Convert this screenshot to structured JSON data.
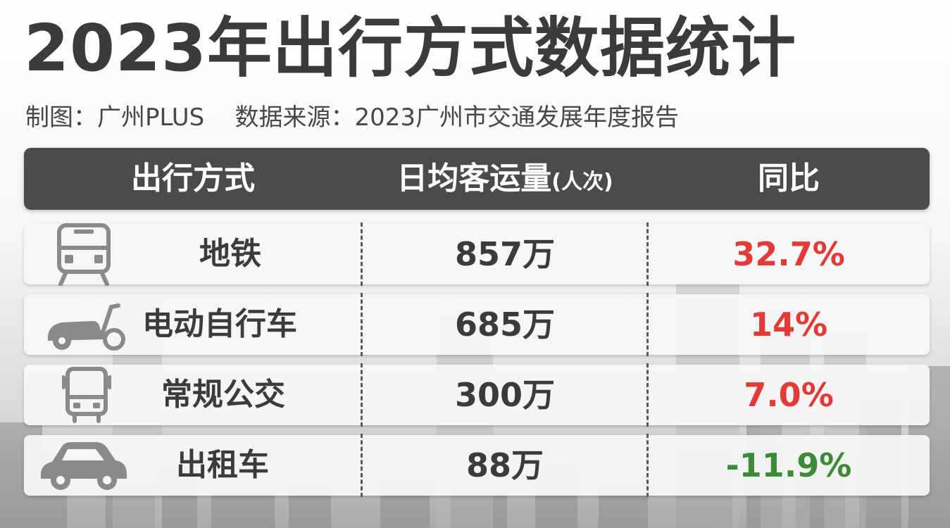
{
  "title": "2023年出行方式数据统计",
  "subtitle": {
    "maker": "制图：广州PLUS",
    "source": "数据来源：2023广州市交通发展年度报告"
  },
  "colors": {
    "header_bg": "#4b4b4b",
    "positive": "#e23a36",
    "negative": "#3d8b3a",
    "text": "#3b3b3b",
    "icon": "#8a8a8a"
  },
  "chart_data": {
    "type": "table",
    "columns": {
      "mode": "出行方式",
      "volume": "日均客运量",
      "volume_unit": "(人次)",
      "yoy": "同比"
    },
    "rows": [
      {
        "icon": "subway-train-icon",
        "mode": "地铁",
        "volume": "857万",
        "volume_value": 857,
        "yoy": "32.7%",
        "yoy_value": 32.7
      },
      {
        "icon": "electric-scooter-icon",
        "mode": "电动自行车",
        "volume": "685万",
        "volume_value": 685,
        "yoy": "14%",
        "yoy_value": 14
      },
      {
        "icon": "bus-icon",
        "mode": "常规公交",
        "volume": "300万",
        "volume_value": 300,
        "yoy": "7.0%",
        "yoy_value": 7.0
      },
      {
        "icon": "taxi-car-icon",
        "mode": "出租车",
        "volume": "88万",
        "volume_value": 88,
        "yoy": "-11.9%",
        "yoy_value": -11.9
      }
    ]
  }
}
